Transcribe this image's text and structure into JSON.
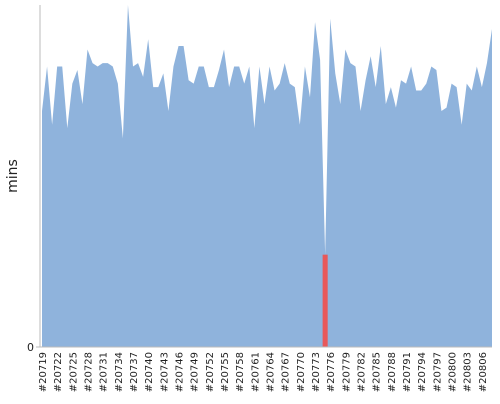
{
  "chart_data": {
    "type": "area",
    "ylabel": "mins",
    "color": "#8fb3dc",
    "highlight_index": 56,
    "highlight_color": "#e8585a",
    "categories": [
      "#20719",
      null,
      null,
      "#20722",
      null,
      null,
      "#20725",
      null,
      null,
      "#20728",
      null,
      null,
      "#20731",
      null,
      null,
      "#20734",
      null,
      null,
      "#20737",
      null,
      null,
      "#20740",
      null,
      null,
      "#20743",
      null,
      null,
      "#20746",
      null,
      null,
      "#20749",
      null,
      null,
      "#20752",
      null,
      null,
      "#20755",
      null,
      null,
      "#20758",
      null,
      null,
      "#20761",
      null,
      null,
      "#20764",
      null,
      null,
      "#20767",
      null,
      null,
      "#20770",
      null,
      null,
      "#20773",
      null,
      null,
      "#20776",
      null,
      null,
      "#20779",
      null,
      null,
      "#20782",
      null,
      null,
      "#20785",
      null,
      null,
      "#20788",
      null,
      null,
      "#20791",
      null,
      null,
      "#20794",
      null,
      null,
      "#20797",
      null,
      null,
      "#20800",
      null,
      null,
      "#20803",
      null,
      null,
      "#20806",
      null,
      null
    ],
    "values": [
      69,
      82,
      65,
      82,
      82,
      64,
      77,
      81,
      71,
      87,
      83,
      82,
      83,
      83,
      82,
      77,
      61,
      100,
      82,
      83,
      79,
      90,
      76,
      76,
      80,
      69,
      82,
      88,
      88,
      78,
      77,
      82,
      82,
      76,
      76,
      81,
      87,
      76,
      82,
      82,
      77,
      82,
      64,
      82,
      71,
      82,
      75,
      77,
      83,
      77,
      76,
      65,
      82,
      73,
      95,
      84,
      27,
      96,
      80,
      71,
      87,
      83,
      82,
      69,
      78,
      85,
      76,
      88,
      71,
      76,
      70,
      78,
      77,
      82,
      75,
      75,
      77,
      82,
      81,
      69,
      70,
      77,
      76,
      65,
      77,
      75,
      82,
      76,
      83,
      93
    ],
    "ylim": [
      0,
      100
    ],
    "yticks": [
      0
    ]
  }
}
